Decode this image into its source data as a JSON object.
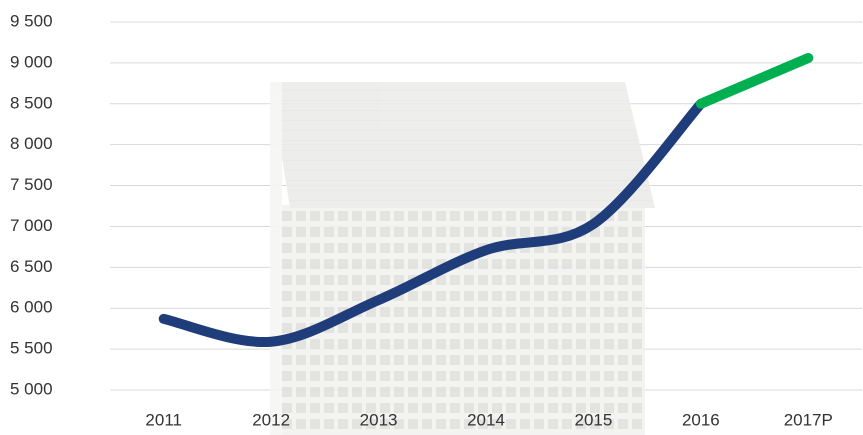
{
  "chart_data": {
    "type": "line",
    "categories": [
      "2011",
      "2012",
      "2013",
      "2014",
      "2015",
      "2016",
      "2017P"
    ],
    "series": [
      {
        "color": "#1f3d7a",
        "values": [
          5870,
          5590,
          6100,
          6710,
          7030,
          8500,
          null
        ]
      },
      {
        "color": "#00b050",
        "values": [
          null,
          null,
          null,
          null,
          null,
          8500,
          9060
        ]
      }
    ],
    "ylim": [
      5000,
      9500
    ],
    "yticks": [
      {
        "value": 5000,
        "label": "5 000"
      },
      {
        "value": 5500,
        "label": "5 500"
      },
      {
        "value": 6000,
        "label": "6 000"
      },
      {
        "value": 6500,
        "label": "6 500"
      },
      {
        "value": 7000,
        "label": "7 000"
      },
      {
        "value": 7500,
        "label": "7 500"
      },
      {
        "value": 8000,
        "label": "8 000"
      },
      {
        "value": 8500,
        "label": "8 500"
      },
      {
        "value": 9000,
        "label": "9 000"
      },
      {
        "value": 9500,
        "label": "9 500"
      }
    ],
    "grid": true
  }
}
